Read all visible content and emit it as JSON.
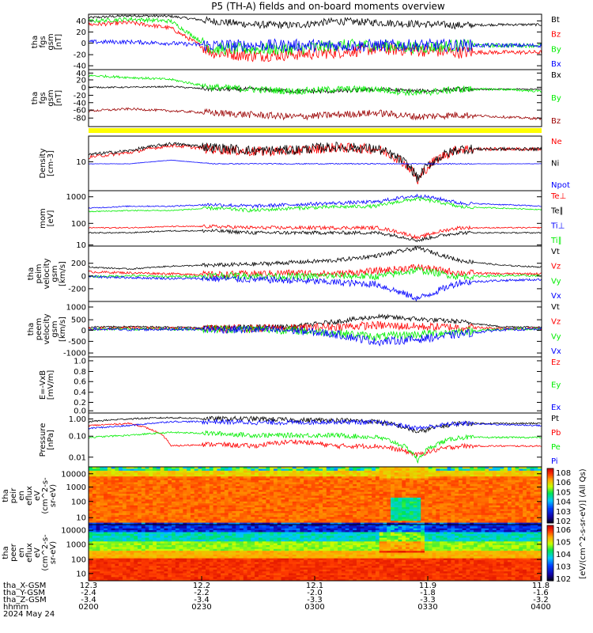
{
  "title": "P5 (TH-A) fields and on-board moments overview",
  "colors": {
    "black": "#000000",
    "red": "#ff0000",
    "green": "#00ee00",
    "blue": "#0000ff",
    "darkred": "#9b0000",
    "yellow": "#ffff00"
  },
  "chart_data": [
    {
      "type": "line",
      "panel": "fgs_gsm",
      "ylabel": [
        "tha",
        "fgs",
        "gsm",
        "[nT]"
      ],
      "yticks": [
        "40",
        "20",
        "0",
        "-20",
        "-40"
      ],
      "ylim": [
        -40,
        40
      ],
      "series": [
        {
          "name": "Bt",
          "color": "black",
          "values": [
            35,
            38,
            37,
            30,
            25,
            24,
            30,
            28,
            26,
            24,
            25,
            25
          ]
        },
        {
          "name": "Bz",
          "color": "red",
          "values": [
            25,
            28,
            20,
            -15,
            -20,
            -18,
            -15,
            -10,
            -12,
            -15,
            -15,
            -15
          ]
        },
        {
          "name": "By",
          "color": "green",
          "values": [
            30,
            33,
            30,
            -10,
            -10,
            -10,
            -5,
            -5,
            -8,
            -5,
            -5,
            -5
          ]
        },
        {
          "name": "Bx",
          "color": "blue",
          "values": [
            0,
            0,
            -2,
            -5,
            -5,
            -5,
            -5,
            -5,
            -5,
            -5,
            -5,
            -5
          ]
        }
      ]
    },
    {
      "type": "line",
      "panel": "fgs_gsm_detail",
      "ylabel": [
        "tha",
        "fgs",
        "gsm",
        "[nT]"
      ],
      "yticks": [
        "40",
        "20",
        "0",
        "-20",
        "-40",
        "-60",
        "-80"
      ],
      "ylim": [
        -100,
        45
      ],
      "series": [
        {
          "name": "Bx",
          "color": "black",
          "values": [
            0,
            0,
            2,
            -5,
            -5,
            -10,
            -10,
            -5,
            -10,
            -5,
            -5,
            -5
          ]
        },
        {
          "name": "By",
          "color": "green",
          "values": [
            30,
            25,
            20,
            0,
            -5,
            -10,
            -5,
            -5,
            -15,
            -5,
            -5,
            -10
          ]
        },
        {
          "name": "Bz",
          "color": "darkred",
          "values": [
            -60,
            -55,
            -60,
            -65,
            -70,
            -75,
            -70,
            -65,
            -75,
            -70,
            -75,
            -80
          ]
        }
      ]
    },
    {
      "type": "line",
      "panel": "density",
      "ylabel": [
        "Density",
        "[cm-3]"
      ],
      "yticks": [
        "10"
      ],
      "yscale": "log",
      "series": [
        {
          "name": "Ne",
          "color": "red",
          "values": [
            12,
            16,
            25,
            20,
            17,
            18,
            22,
            20,
            2.5,
            20,
            20,
            20
          ]
        },
        {
          "name": "Ni",
          "color": "black",
          "values": [
            14,
            18,
            28,
            22,
            18,
            19,
            23,
            20,
            3,
            20,
            20,
            20
          ]
        },
        {
          "name": "Npot",
          "color": "blue",
          "values": [
            8,
            8,
            10,
            8,
            8,
            8,
            8,
            8,
            8,
            8,
            8,
            8
          ]
        }
      ]
    },
    {
      "type": "line",
      "panel": "temperature",
      "ylabel": [
        "mom",
        "[eV]"
      ],
      "yticks": [
        "1000",
        "100",
        "10"
      ],
      "yscale": "log",
      "series": [
        {
          "name": "Te⊥",
          "color": "red",
          "values": [
            40,
            40,
            45,
            45,
            40,
            40,
            40,
            40,
            15,
            40,
            40,
            40
          ]
        },
        {
          "name": "Te∥",
          "color": "black",
          "values": [
            25,
            25,
            30,
            30,
            25,
            25,
            25,
            25,
            12,
            25,
            25,
            25
          ]
        },
        {
          "name": "Ti⊥",
          "color": "blue",
          "values": [
            250,
            300,
            300,
            350,
            300,
            350,
            400,
            450,
            800,
            400,
            350,
            300
          ]
        },
        {
          "name": "Ti∥",
          "color": "green",
          "values": [
            180,
            200,
            200,
            250,
            200,
            250,
            280,
            300,
            600,
            280,
            250,
            220
          ]
        }
      ]
    },
    {
      "type": "line",
      "panel": "peim_velocity",
      "ylabel": [
        "tha",
        "peim",
        "velocity",
        "gsm",
        "[km/s]"
      ],
      "yticks": [
        "200",
        "0",
        "-200"
      ],
      "ylim": [
        -280,
        300
      ],
      "series": [
        {
          "name": "Vt",
          "color": "black",
          "values": [
            80,
            60,
            90,
            100,
            110,
            130,
            150,
            200,
            280,
            150,
            100,
            80
          ]
        },
        {
          "name": "Vz",
          "color": "red",
          "values": [
            30,
            20,
            10,
            0,
            10,
            20,
            10,
            40,
            80,
            20,
            10,
            10
          ]
        },
        {
          "name": "Vy",
          "color": "green",
          "values": [
            -20,
            -10,
            -20,
            -10,
            -10,
            -20,
            -10,
            -20,
            50,
            -20,
            -10,
            -10
          ]
        },
        {
          "name": "Vx",
          "color": "blue",
          "values": [
            -20,
            -30,
            -40,
            -40,
            -50,
            -60,
            -80,
            -100,
            -250,
            -80,
            -60,
            -50
          ]
        }
      ]
    },
    {
      "type": "line",
      "panel": "peem_velocity",
      "ylabel": [
        "tha",
        "peem",
        "velocity",
        "gsm",
        "[km/s]"
      ],
      "yticks": [
        "1000",
        "500",
        "0",
        "-500",
        "-1000"
      ],
      "ylim": [
        -1100,
        1100
      ],
      "series": [
        {
          "name": "Vt",
          "color": "black",
          "values": [
            80,
            100,
            80,
            60,
            80,
            100,
            300,
            500,
            400,
            300,
            100,
            80
          ]
        },
        {
          "name": "Vz",
          "color": "red",
          "values": [
            20,
            50,
            30,
            20,
            30,
            40,
            100,
            150,
            100,
            80,
            30,
            20
          ]
        },
        {
          "name": "Vy",
          "color": "green",
          "values": [
            0,
            10,
            0,
            0,
            0,
            -50,
            -150,
            -300,
            -200,
            -100,
            0,
            0
          ]
        },
        {
          "name": "Vx",
          "color": "blue",
          "values": [
            0,
            -20,
            0,
            0,
            -20,
            -50,
            -200,
            -500,
            -400,
            -200,
            -20,
            0
          ]
        }
      ]
    },
    {
      "type": "line",
      "panel": "efield",
      "ylabel": [
        "E=-VxB",
        "[mV/m]"
      ],
      "yticks": [
        "1.0",
        "0.8",
        "0.6",
        "0.4",
        "0.2",
        "0.0"
      ],
      "ylim": [
        0,
        1
      ],
      "series": [
        {
          "name": "Ez",
          "color": "red",
          "values": []
        },
        {
          "name": "Ey",
          "color": "green",
          "values": []
        },
        {
          "name": "Ex",
          "color": "blue",
          "values": []
        }
      ]
    },
    {
      "type": "line",
      "panel": "pressure",
      "ylabel": [
        "Pressure",
        "[nPa]"
      ],
      "yticks": [
        "1.00",
        "0.10",
        "0.01"
      ],
      "yscale": "log",
      "series": [
        {
          "name": "Pt",
          "color": "black",
          "values": [
            0.6,
            0.8,
            0.9,
            0.8,
            0.8,
            0.7,
            0.7,
            0.6,
            0.2,
            0.5,
            0.5,
            0.5
          ]
        },
        {
          "name": "Pb",
          "color": "red",
          "values": [
            0.4,
            0.5,
            0.05,
            0.06,
            0.05,
            0.08,
            0.05,
            0.05,
            0.02,
            0.05,
            0.05,
            0.05
          ]
        },
        {
          "name": "Pe",
          "color": "green",
          "values": [
            0.12,
            0.15,
            0.2,
            0.18,
            0.15,
            0.15,
            0.15,
            0.12,
            0.01,
            0.12,
            0.12,
            0.12
          ]
        },
        {
          "name": "Pi",
          "color": "blue",
          "values": [
            0.3,
            0.4,
            0.6,
            0.6,
            0.55,
            0.55,
            0.6,
            0.55,
            0.3,
            0.5,
            0.45,
            0.4
          ]
        }
      ]
    },
    {
      "type": "heatmap",
      "panel": "peir_spectrogram",
      "ylabel": [
        "tha",
        "peir",
        "en",
        "eflux",
        "eV",
        "(cm^2-s-",
        "sr-eV)"
      ],
      "yticks": [
        "10000",
        "1000",
        "100",
        "10"
      ],
      "yscale": "log"
    },
    {
      "type": "heatmap",
      "panel": "peer_spectrogram",
      "ylabel": [
        "tha",
        "peer",
        "en",
        "eflux",
        "eV",
        "(cm^2-s-",
        "sr-eV)"
      ],
      "yticks": [
        "10000",
        "1000",
        "100",
        "10"
      ],
      "yscale": "log"
    }
  ],
  "colorbar": {
    "label": "[eV/(cm^2-s-sr-eV)] (All Qs)",
    "ticks_top": [
      "10^8",
      "10^6",
      "10^5",
      "10^4",
      "10^3",
      "10^2"
    ],
    "ticks_bottom": [
      "10^6",
      "10^5",
      "10^4",
      "10^3",
      "10^2"
    ]
  },
  "footer": {
    "row_labels": [
      "tha_X-GSM",
      "tha_Y-GSM",
      "tha_Z-GSM",
      "hhmm",
      "2024 May 24"
    ],
    "columns": [
      {
        "x": "12.3",
        "y": "-2.4",
        "z": "-3.4",
        "t": "0200"
      },
      {
        "x": "12.2",
        "y": "-2.2",
        "z": "-3.4",
        "t": "0230"
      },
      {
        "x": "12.1",
        "y": "-2.0",
        "z": "-3.3",
        "t": "0300"
      },
      {
        "x": "11.9",
        "y": "-1.8",
        "z": "-3.3",
        "t": "0330"
      },
      {
        "x": "11.8",
        "y": "-1.6",
        "z": "-3.2",
        "t": "0400"
      }
    ]
  }
}
